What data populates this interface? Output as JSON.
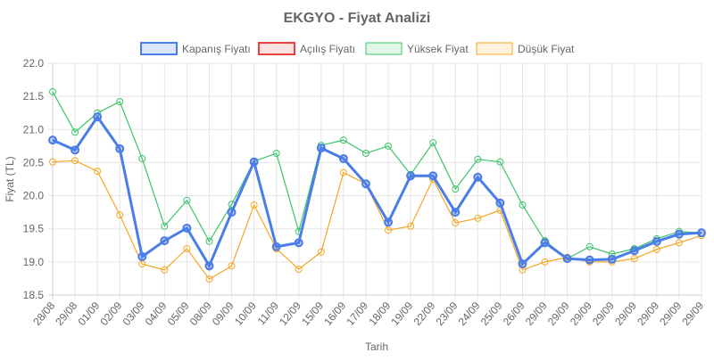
{
  "chart_data": {
    "type": "line",
    "title": "EKGYO - Fiyat Analizi",
    "xlabel": "Tarih",
    "ylabel": "Fiyat (TL)",
    "ylim": [
      18.5,
      22.0
    ],
    "yticks": [
      "18.5",
      "19.0",
      "19.5",
      "20.0",
      "20.5",
      "21.0",
      "21.5",
      "22.0"
    ],
    "grid": true,
    "legend_position": "top",
    "categories": [
      "28/08",
      "29/08",
      "01/09",
      "02/09",
      "03/09",
      "04/09",
      "05/09",
      "08/09",
      "09/09",
      "10/09",
      "11/09",
      "12/09",
      "15/09",
      "16/09",
      "17/09",
      "18/09",
      "19/09",
      "22/09",
      "23/09",
      "24/09",
      "25/09",
      "26/09",
      "29/09",
      "29/09",
      "29/09",
      "29/09",
      "29/09",
      "29/09",
      "29/09",
      "29/09"
    ],
    "series": [
      {
        "name": "Kapanış Fiyatı",
        "color": "#4a7de8",
        "values": [
          20.84,
          20.69,
          21.19,
          20.71,
          19.08,
          19.32,
          19.51,
          18.94,
          19.75,
          20.51,
          19.23,
          19.29,
          20.72,
          20.56,
          20.18,
          19.6,
          20.3,
          20.3,
          19.75,
          20.28,
          19.89,
          18.97,
          19.29,
          19.05,
          19.03,
          19.04,
          19.17,
          19.31,
          19.42,
          19.44
        ]
      },
      {
        "name": "Açılış Fiyatı",
        "color": "#e8403f",
        "values": [
          20.84,
          20.69,
          21.19,
          20.71,
          19.08,
          19.32,
          19.51,
          18.94,
          19.75,
          20.51,
          19.23,
          19.29,
          20.72,
          20.56,
          20.18,
          19.6,
          20.3,
          20.3,
          19.75,
          20.28,
          19.89,
          18.97,
          19.29,
          19.05,
          19.03,
          19.04,
          19.17,
          19.31,
          19.42,
          19.44
        ]
      },
      {
        "name": "Yüksek Fiyat",
        "color": "#3cc46a",
        "values": [
          21.57,
          20.96,
          21.25,
          21.42,
          20.56,
          19.54,
          19.93,
          19.31,
          19.87,
          20.52,
          20.64,
          19.46,
          20.76,
          20.84,
          20.64,
          20.75,
          20.32,
          20.8,
          20.1,
          20.55,
          20.51,
          19.86,
          19.32,
          19.05,
          19.23,
          19.12,
          19.2,
          19.35,
          19.46,
          19.44
        ]
      },
      {
        "name": "Düşük Fiyat",
        "color": "#f5a623",
        "values": [
          20.51,
          20.53,
          20.37,
          19.71,
          18.97,
          18.88,
          19.2,
          18.74,
          18.94,
          19.86,
          19.2,
          18.89,
          19.15,
          20.35,
          20.18,
          19.48,
          19.54,
          20.25,
          19.59,
          19.66,
          19.78,
          18.88,
          19.0,
          19.07,
          19.0,
          19.0,
          19.05,
          19.19,
          19.29,
          19.4
        ]
      }
    ]
  }
}
